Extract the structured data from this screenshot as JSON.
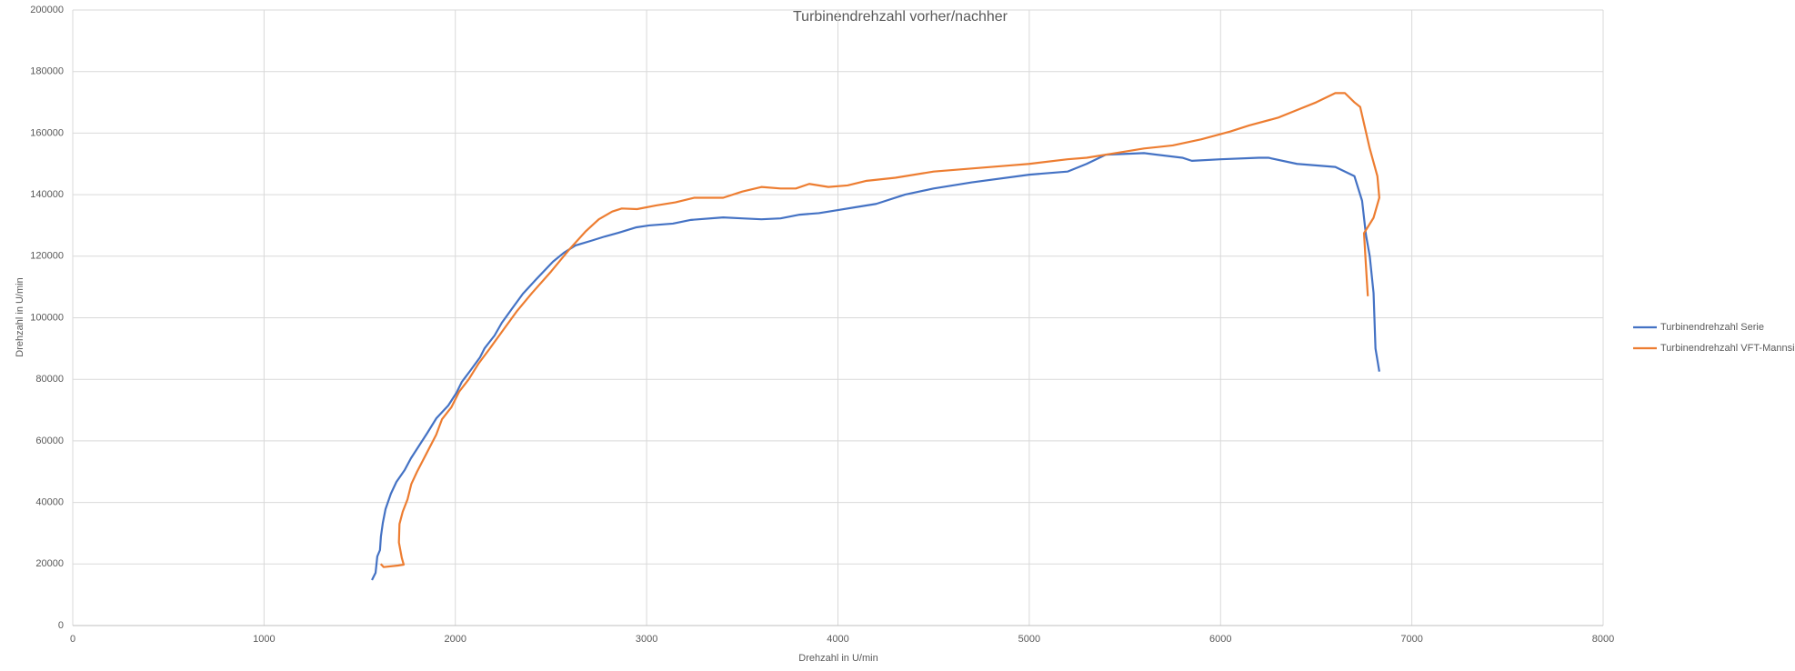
{
  "chart_data": {
    "type": "line",
    "title": "Turbinendrehzahl vorher/nachher",
    "x_label": "Drehzahl in U/min",
    "y_label": "Drehzahl in U/min",
    "xlim": [
      0,
      8000
    ],
    "xticks": [
      0,
      1000,
      2000,
      3000,
      4000,
      5000,
      6000,
      7000,
      8000
    ],
    "ylim": [
      0,
      200000
    ],
    "yticks": [
      0,
      20000,
      40000,
      60000,
      80000,
      100000,
      120000,
      140000,
      160000,
      180000,
      200000
    ],
    "grid": true,
    "legend": "right",
    "series": [
      {
        "name": "Turbinendrehzahl Serie",
        "color": "#4472c4",
        "x": [
          1564,
          1583,
          1592,
          1606,
          1611,
          1621,
          1635,
          1663,
          1692,
          1735,
          1768,
          1811,
          1854,
          1901,
          1963,
          2006,
          2034,
          2077,
          2129,
          2153,
          2205,
          2243,
          2291,
          2353,
          2424,
          2510,
          2567,
          2628,
          2709,
          2781,
          2852,
          2947,
          3013,
          3137,
          3232,
          3400,
          3500,
          3600,
          3700,
          3800,
          3900,
          4000,
          4100,
          4200,
          4350,
          4500,
          4700,
          5000,
          5200,
          5300,
          5400,
          5600,
          5800,
          5850,
          6000,
          6200,
          6250,
          6400,
          6600,
          6700,
          6740,
          6760,
          6780,
          6800,
          6810,
          6830
        ],
        "values": [
          14770,
          17130,
          22450,
          24520,
          28950,
          33380,
          37810,
          42840,
          46680,
          50520,
          54360,
          58490,
          62630,
          67360,
          71490,
          75630,
          79170,
          82720,
          87150,
          90100,
          94240,
          98380,
          102500,
          107800,
          112600,
          118200,
          121100,
          123500,
          125000,
          126400,
          127600,
          129400,
          130000,
          130600,
          131800,
          132600,
          132300,
          132000,
          132300,
          133500,
          134000,
          135000,
          136000,
          137000,
          140000,
          142000,
          144000,
          146500,
          147500,
          150000,
          153000,
          153500,
          152000,
          151000,
          151500,
          152000,
          152000,
          150000,
          149000,
          146000,
          138000,
          127000,
          120000,
          108000,
          90000,
          82500
        ]
      },
      {
        "name": "Turbinendrehzahl VFT-Mannsi",
        "color": "#ed7d31",
        "x": [
          1610,
          1625,
          1700,
          1730,
          1720,
          1705,
          1708,
          1725,
          1750,
          1770,
          1800,
          1850,
          1900,
          1930,
          1980,
          2020,
          2070,
          2120,
          2180,
          2250,
          2320,
          2400,
          2500,
          2600,
          2680,
          2750,
          2820,
          2870,
          2950,
          3050,
          3150,
          3250,
          3400,
          3500,
          3600,
          3700,
          3780,
          3850,
          3950,
          4050,
          4150,
          4300,
          4500,
          4700,
          4900,
          5000,
          5200,
          5300,
          5450,
          5600,
          5750,
          5900,
          6050,
          6150,
          6300,
          6400,
          6500,
          6600,
          6650,
          6700,
          6730,
          6780,
          6820,
          6830,
          6800,
          6750,
          6760,
          6770
        ],
        "values": [
          20000,
          19000,
          19500,
          19800,
          22000,
          27000,
          33000,
          37000,
          41000,
          46000,
          50000,
          56000,
          62000,
          67000,
          71000,
          76000,
          80000,
          85000,
          90000,
          96000,
          102000,
          108000,
          115000,
          122500,
          128000,
          132000,
          134500,
          135500,
          135300,
          136500,
          137500,
          139000,
          139000,
          141000,
          142500,
          142000,
          142000,
          143500,
          142500,
          143000,
          144500,
          145500,
          147500,
          148500,
          149500,
          150000,
          151500,
          152000,
          153500,
          155000,
          156000,
          158000,
          160500,
          162500,
          165000,
          167500,
          170000,
          173000,
          173000,
          170000,
          168500,
          155000,
          146000,
          139000,
          132500,
          127500,
          117000,
          107000
        ]
      }
    ]
  }
}
